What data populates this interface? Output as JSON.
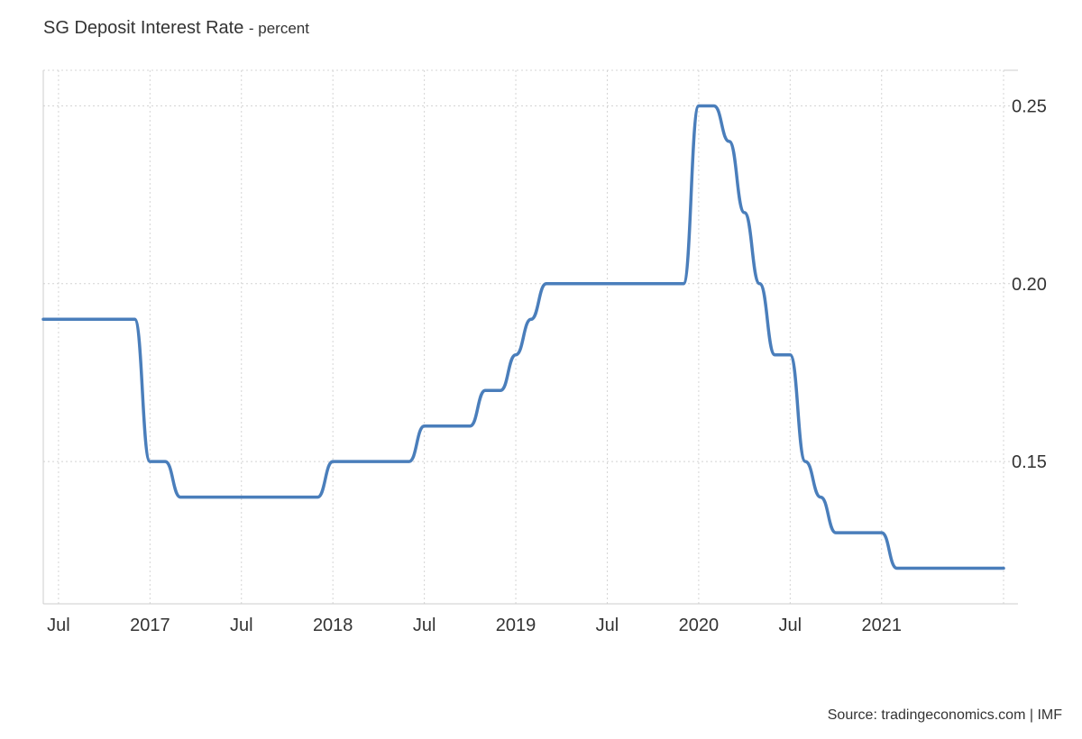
{
  "chart_data": {
    "type": "line",
    "title": "SG Deposit Interest Rate",
    "subtitle": "- percent",
    "source": "Source: tradingeconomics.com | IMF",
    "x_ticks": [
      "Jul",
      "2017",
      "Jul",
      "2018",
      "Jul",
      "2019",
      "Jul",
      "2020",
      "Jul",
      "2021"
    ],
    "x_tick_dates": [
      "2016-07",
      "2017-01",
      "2017-07",
      "2018-01",
      "2018-07",
      "2019-01",
      "2019-07",
      "2020-01",
      "2020-07",
      "2021-01"
    ],
    "x_range": [
      "2016-06",
      "2021-09"
    ],
    "y_ticks": [
      "0.15",
      "0.20",
      "0.25"
    ],
    "y_tick_values": [
      0.15,
      0.2,
      0.25
    ],
    "ylim": [
      0.11,
      0.26
    ],
    "y_axis_position": "right",
    "grid": true,
    "line_color": "#4a7ebb",
    "series": [
      {
        "x": [
          "2016-06",
          "2016-07",
          "2016-08",
          "2016-09",
          "2016-10",
          "2016-11",
          "2016-12",
          "2017-01",
          "2017-02",
          "2017-03",
          "2017-04",
          "2017-05",
          "2017-06",
          "2017-07",
          "2017-08",
          "2017-09",
          "2017-10",
          "2017-11",
          "2017-12",
          "2018-01",
          "2018-02",
          "2018-03",
          "2018-04",
          "2018-05",
          "2018-06",
          "2018-07",
          "2018-08",
          "2018-09",
          "2018-10",
          "2018-11",
          "2018-12",
          "2019-01",
          "2019-02",
          "2019-03",
          "2019-04",
          "2019-05",
          "2019-06",
          "2019-07",
          "2019-08",
          "2019-09",
          "2019-10",
          "2019-11",
          "2019-12",
          "2020-01",
          "2020-02",
          "2020-03",
          "2020-04",
          "2020-05",
          "2020-06",
          "2020-07",
          "2020-08",
          "2020-09",
          "2020-10",
          "2020-11",
          "2020-12",
          "2021-01",
          "2021-02",
          "2021-03",
          "2021-04",
          "2021-05",
          "2021-06",
          "2021-07",
          "2021-08",
          "2021-09"
        ],
        "values": [
          0.19,
          0.19,
          0.19,
          0.19,
          0.19,
          0.19,
          0.19,
          0.15,
          0.15,
          0.14,
          0.14,
          0.14,
          0.14,
          0.14,
          0.14,
          0.14,
          0.14,
          0.14,
          0.14,
          0.15,
          0.15,
          0.15,
          0.15,
          0.15,
          0.15,
          0.16,
          0.16,
          0.16,
          0.16,
          0.17,
          0.17,
          0.18,
          0.19,
          0.2,
          0.2,
          0.2,
          0.2,
          0.2,
          0.2,
          0.2,
          0.2,
          0.2,
          0.2,
          0.25,
          0.25,
          0.24,
          0.22,
          0.2,
          0.18,
          0.18,
          0.15,
          0.14,
          0.13,
          0.13,
          0.13,
          0.13,
          0.12,
          0.12,
          0.12,
          0.12,
          0.12,
          0.12,
          0.12,
          0.12
        ]
      }
    ]
  }
}
